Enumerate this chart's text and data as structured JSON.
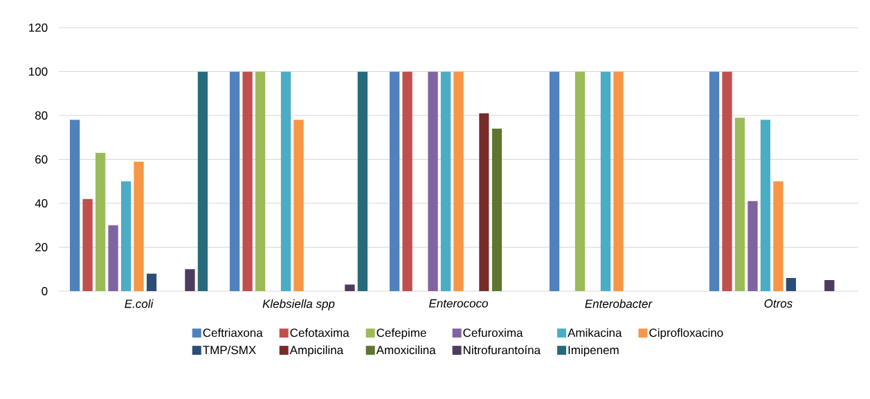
{
  "chart_data": {
    "type": "bar",
    "categories": [
      "*E.coli*",
      "*Klebsiella spp*",
      "*Enterococo*",
      "*Enterobacter*",
      "*Otros*"
    ],
    "series": [
      {
        "name": "Ceftriaxona",
        "color": "#4f81bd",
        "values": [
          78,
          100,
          100,
          100,
          100
        ]
      },
      {
        "name": "Cefotaxima",
        "color": "#c0504d",
        "values": [
          42,
          100,
          100,
          null,
          100
        ]
      },
      {
        "name": "Cefepime",
        "color": "#9bbb59",
        "values": [
          63,
          100,
          null,
          100,
          79
        ]
      },
      {
        "name": "Cefuroxima",
        "color": "#8064a2",
        "values": [
          30,
          null,
          100,
          null,
          41
        ]
      },
      {
        "name": "Amikacina",
        "color": "#4bacc6",
        "values": [
          50,
          100,
          100,
          100,
          78
        ]
      },
      {
        "name": "Ciprofloxacino",
        "color": "#f79646",
        "values": [
          59,
          78,
          100,
          100,
          50
        ]
      },
      {
        "name": "TMP/SMX",
        "color": "#2c4d75",
        "values": [
          8,
          null,
          null,
          null,
          6
        ]
      },
      {
        "name": "Ampicilina",
        "color": "#772c2a",
        "values": [
          null,
          null,
          81,
          null,
          null
        ]
      },
      {
        "name": "Amoxicilina",
        "color": "#5f7530",
        "values": [
          null,
          null,
          74,
          null,
          null
        ]
      },
      {
        "name": "Nitrofurantoína",
        "color": "#4d3b62",
        "values": [
          10,
          3,
          null,
          null,
          5
        ]
      },
      {
        "name": "Imipenem",
        "color": "#276a7c",
        "values": [
          100,
          100,
          null,
          null,
          null
        ]
      }
    ],
    "ylim": [
      0,
      120
    ],
    "yticks": [
      0,
      20,
      40,
      60,
      80,
      100,
      120
    ],
    "grid": "y",
    "legend": "bottom"
  }
}
